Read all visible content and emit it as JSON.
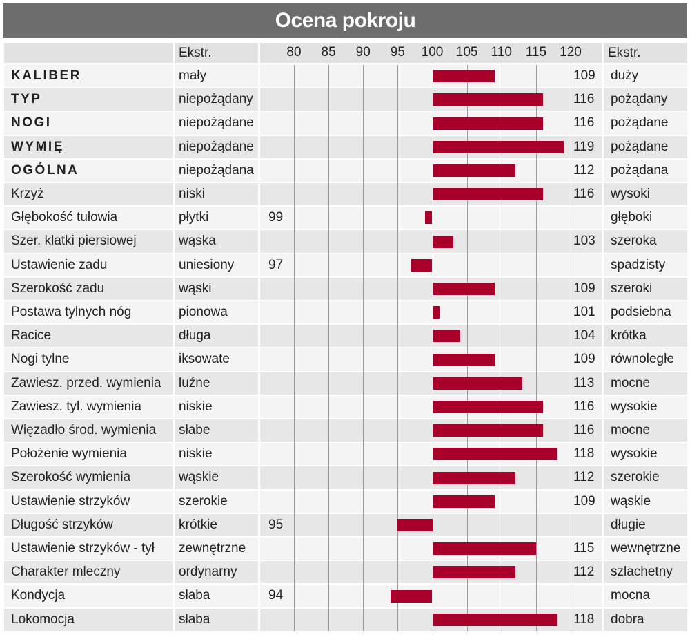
{
  "title": "Ocena pokroju",
  "header": {
    "left_extreme": "Ekstr.",
    "right_extreme": "Ekstr."
  },
  "colors": {
    "bar": "#a8002a",
    "title_bg": "#6d6d6d",
    "row_a": "#e7e7e7",
    "row_b": "#f4f4f4"
  },
  "chart_data": {
    "type": "bar",
    "orientation": "horizontal",
    "baseline": 100,
    "xlim": [
      80,
      120
    ],
    "x_ticks": [
      "80",
      "85",
      "90",
      "95",
      "100",
      "105",
      "110",
      "115",
      "120"
    ],
    "grid": true,
    "rows": [
      {
        "trait": "KALIBER",
        "bold": true,
        "low": "mały",
        "high": "duży",
        "value": 109
      },
      {
        "trait": "TYP",
        "bold": true,
        "low": "niepożądany",
        "high": "pożądany",
        "value": 116
      },
      {
        "trait": "NOGI",
        "bold": true,
        "low": "niepożądane",
        "high": "pożądane",
        "value": 116
      },
      {
        "trait": "WYMIĘ",
        "bold": true,
        "low": "niepożądane",
        "high": "pożądane",
        "value": 119
      },
      {
        "trait": "OGÓLNA",
        "bold": true,
        "low": "niepożądana",
        "high": "pożądana",
        "value": 112
      },
      {
        "trait": "Krzyż",
        "bold": false,
        "low": "niski",
        "high": "wysoki",
        "value": 116
      },
      {
        "trait": "Głębokość tułowia",
        "bold": false,
        "low": "płytki",
        "high": "głęboki",
        "value": 99
      },
      {
        "trait": "Szer. klatki piersiowej",
        "bold": false,
        "low": "wąska",
        "high": "szeroka",
        "value": 103
      },
      {
        "trait": "Ustawienie zadu",
        "bold": false,
        "low": "uniesiony",
        "high": "spadzisty",
        "value": 97
      },
      {
        "trait": "Szerokość zadu",
        "bold": false,
        "low": "wąski",
        "high": "szeroki",
        "value": 109
      },
      {
        "trait": "Postawa tylnych nóg",
        "bold": false,
        "low": "pionowa",
        "high": "podsiebna",
        "value": 101
      },
      {
        "trait": "Racice",
        "bold": false,
        "low": "długa",
        "high": "krótka",
        "value": 104
      },
      {
        "trait": "Nogi tylne",
        "bold": false,
        "low": "iksowate",
        "high": "równoległe",
        "value": 109
      },
      {
        "trait": "Zawiesz. przed. wymienia",
        "bold": false,
        "low": "luźne",
        "high": "mocne",
        "value": 113
      },
      {
        "trait": "Zawiesz. tyl. wymienia",
        "bold": false,
        "low": "niskie",
        "high": "wysokie",
        "value": 116
      },
      {
        "trait": "Więzadło środ. wymienia",
        "bold": false,
        "low": "słabe",
        "high": "mocne",
        "value": 116
      },
      {
        "trait": "Położenie wymienia",
        "bold": false,
        "low": "niskie",
        "high": "wysokie",
        "value": 118
      },
      {
        "trait": "Szerokość wymienia",
        "bold": false,
        "low": "wąskie",
        "high": "szerokie",
        "value": 112
      },
      {
        "trait": "Ustawienie strzyków",
        "bold": false,
        "low": "szerokie",
        "high": "wąskie",
        "value": 109
      },
      {
        "trait": "Długość strzyków",
        "bold": false,
        "low": "krótkie",
        "high": "długie",
        "value": 95
      },
      {
        "trait": "Ustawienie strzyków - tył",
        "bold": false,
        "low": "zewnętrzne",
        "high": "wewnętrzne",
        "value": 115
      },
      {
        "trait": "Charakter mleczny",
        "bold": false,
        "low": "ordynarny",
        "high": "szlachetny",
        "value": 112
      },
      {
        "trait": "Kondycja",
        "bold": false,
        "low": "słaba",
        "high": "mocna",
        "value": 94
      },
      {
        "trait": "Lokomocja",
        "bold": false,
        "low": "słaba",
        "high": "dobra",
        "value": 118
      }
    ]
  }
}
